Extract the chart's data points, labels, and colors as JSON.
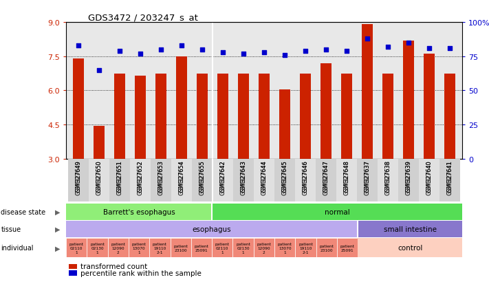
{
  "title": "GDS3472 / 203247_s_at",
  "samples": [
    "GSM327649",
    "GSM327650",
    "GSM327651",
    "GSM327652",
    "GSM327653",
    "GSM327654",
    "GSM327655",
    "GSM327642",
    "GSM327643",
    "GSM327644",
    "GSM327645",
    "GSM327646",
    "GSM327647",
    "GSM327648",
    "GSM327637",
    "GSM327638",
    "GSM327639",
    "GSM327640",
    "GSM327641"
  ],
  "bar_values": [
    7.4,
    4.45,
    6.75,
    6.65,
    6.75,
    7.5,
    6.75,
    6.75,
    6.75,
    6.75,
    6.05,
    6.75,
    7.2,
    6.75,
    8.9,
    6.75,
    8.2,
    7.6,
    6.75
  ],
  "dot_values": [
    83,
    65,
    79,
    77,
    80,
    83,
    80,
    78,
    77,
    78,
    76,
    79,
    80,
    79,
    88,
    82,
    85,
    81,
    81
  ],
  "ylim": [
    3,
    9
  ],
  "y2lim": [
    0,
    100
  ],
  "yticks": [
    3,
    4.5,
    6,
    7.5,
    9
  ],
  "y2ticks": [
    0,
    25,
    50,
    75,
    100
  ],
  "bar_color": "#cc2200",
  "dot_color": "#0000cc",
  "bg_color": "#e8e8e8",
  "disease_barrett_color": "#90ee78",
  "disease_normal_color": "#55dd55",
  "tissue_esoph_color": "#bbaaee",
  "tissue_small_color": "#8877cc",
  "individual_salmon": "#f08878",
  "control_color": "#fdd0c0",
  "background_color": "#ffffff",
  "axis_label_color_left": "#cc2200",
  "axis_label_color_right": "#0000cc",
  "indiv_labels": [
    "patient\n02110\n1",
    "patient\n02130\n1",
    "patient\n12090\n2",
    "patient\n13070\n1",
    "patient\n19110\n2-1",
    "patient\n23100",
    "patient\n25091",
    "patient\n02110\n1",
    "patient\n02130\n1",
    "patient\n12090\n2",
    "patient\n13070\n1",
    "patient\n19110\n2-1",
    "patient\n23100",
    "patient\n25091"
  ]
}
